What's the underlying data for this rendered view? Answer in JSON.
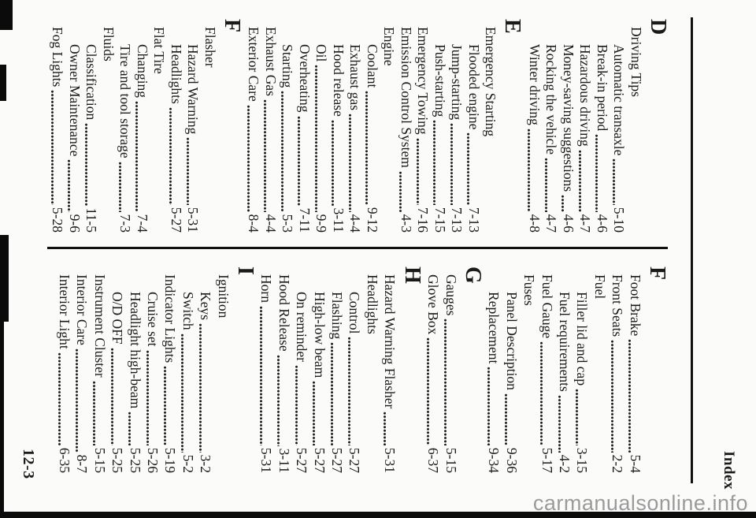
{
  "header": {
    "title": "Index"
  },
  "page_number": "12-3",
  "watermark": "carmanualsonline.info",
  "colors": {
    "ink": "#1a1a1a",
    "rule": "#101010",
    "watermark_gray": "#9b9b9b",
    "paper": "#fbfbf9"
  },
  "index": {
    "left_column": [
      {
        "type": "letter",
        "text": "D"
      },
      {
        "type": "header",
        "level": 1,
        "text": "Driving Tips"
      },
      {
        "type": "entry",
        "level": 2,
        "text": "Automatic transaxle",
        "num": "5-10"
      },
      {
        "type": "entry",
        "level": 2,
        "text": "Break-in period",
        "num": "4-6"
      },
      {
        "type": "entry",
        "level": 2,
        "text": "Hazardous driving",
        "num": "4-7"
      },
      {
        "type": "entry",
        "level": 2,
        "text": "Money-saving suggestions",
        "num": "4-6"
      },
      {
        "type": "entry",
        "level": 2,
        "text": "Rocking the vehicle",
        "num": "4-7"
      },
      {
        "type": "entry",
        "level": 2,
        "text": "Winter driving",
        "num": "4-8"
      },
      {
        "type": "letter",
        "text": "E"
      },
      {
        "type": "header",
        "level": 1,
        "text": "Emergency Starting"
      },
      {
        "type": "entry",
        "level": 2,
        "text": "Flooded engine",
        "num": "7-13"
      },
      {
        "type": "entry",
        "level": 2,
        "text": "Jump-starting",
        "num": "7-13"
      },
      {
        "type": "entry",
        "level": 2,
        "text": "Push-starting",
        "num": "7-15"
      },
      {
        "type": "entry",
        "level": 1,
        "text": "Emergency Towing",
        "num": "7-16"
      },
      {
        "type": "entry",
        "level": 1,
        "text": "Emission Control System",
        "num": "4-3"
      },
      {
        "type": "header",
        "level": 1,
        "text": "Engine"
      },
      {
        "type": "entry",
        "level": 2,
        "text": "Coolant",
        "num": "9-12"
      },
      {
        "type": "entry",
        "level": 2,
        "text": "Exhaust gas",
        "num": "4-4"
      },
      {
        "type": "entry",
        "level": 2,
        "text": "Hood release",
        "num": "3-11"
      },
      {
        "type": "entry",
        "level": 2,
        "text": "Oil",
        "num": "9-9"
      },
      {
        "type": "entry",
        "level": 2,
        "text": "Overheating",
        "num": "7-11"
      },
      {
        "type": "entry",
        "level": 2,
        "text": "Starting",
        "num": "5-3"
      },
      {
        "type": "entry",
        "level": 1,
        "text": "Exhaust Gas",
        "num": "4-4"
      },
      {
        "type": "entry",
        "level": 1,
        "text": "Exterior Care",
        "num": "8-4"
      },
      {
        "type": "letter",
        "text": "F"
      },
      {
        "type": "header",
        "level": 1,
        "text": "Flasher"
      },
      {
        "type": "entry",
        "level": 2,
        "text": "Hazard Warning",
        "num": "5-31"
      },
      {
        "type": "entry",
        "level": 2,
        "text": "Headlights",
        "num": "5-27"
      },
      {
        "type": "header",
        "level": 1,
        "text": "Flat Tire"
      },
      {
        "type": "entry",
        "level": 2,
        "text": "Changing",
        "num": "7-4"
      },
      {
        "type": "entry",
        "level": 2,
        "text": "Tire and tool storage",
        "num": "7-3"
      },
      {
        "type": "header",
        "level": 1,
        "text": "Fluids"
      },
      {
        "type": "entry",
        "level": 2,
        "text": "Classification",
        "num": "11-5"
      },
      {
        "type": "entry",
        "level": 2,
        "text": "Owner Maintenance",
        "num": "9-6"
      },
      {
        "type": "entry",
        "level": 1,
        "text": "Fog Lights",
        "num": "5-28"
      }
    ],
    "right_column": [
      {
        "type": "letter",
        "text": "F"
      },
      {
        "type": "entry",
        "level": 1,
        "text": "Foot Brake",
        "num": "5-4"
      },
      {
        "type": "entry",
        "level": 1,
        "text": "Front Seats",
        "num": "2-2"
      },
      {
        "type": "header",
        "level": 1,
        "text": "Fuel"
      },
      {
        "type": "entry",
        "level": 2,
        "text": "Filler lid and cap",
        "num": "3-15"
      },
      {
        "type": "entry",
        "level": 2,
        "text": "Fuel requirements",
        "num": "4-2"
      },
      {
        "type": "entry",
        "level": 1,
        "text": "Fuel Gauge",
        "num": "5-17"
      },
      {
        "type": "header",
        "level": 1,
        "text": "Fuses"
      },
      {
        "type": "entry",
        "level": 2,
        "text": "Panel Description",
        "num": "9-36"
      },
      {
        "type": "entry",
        "level": 2,
        "text": "Replacement",
        "num": "9-34"
      },
      {
        "type": "letter",
        "text": "G"
      },
      {
        "type": "entry",
        "level": 1,
        "text": "Gauges",
        "num": "5-15"
      },
      {
        "type": "entry",
        "level": 1,
        "text": "Glove Box",
        "num": "6-37"
      },
      {
        "type": "letter",
        "text": "H"
      },
      {
        "type": "entry",
        "level": 1,
        "text": "Hazard Warning Flasher",
        "num": "5-31"
      },
      {
        "type": "header",
        "level": 1,
        "text": "Headlights"
      },
      {
        "type": "entry",
        "level": 2,
        "text": "Control",
        "num": "5-27"
      },
      {
        "type": "entry",
        "level": 2,
        "text": "Flashing",
        "num": "5-27"
      },
      {
        "type": "entry",
        "level": 2,
        "text": "High-low beam",
        "num": "5-27"
      },
      {
        "type": "entry",
        "level": 2,
        "text": "On reminder",
        "num": "5-27"
      },
      {
        "type": "entry",
        "level": 1,
        "text": "Hood Release",
        "num": "3-11"
      },
      {
        "type": "entry",
        "level": 1,
        "text": "Horn",
        "num": "5-31"
      },
      {
        "type": "letter",
        "text": "I"
      },
      {
        "type": "header",
        "level": 1,
        "text": "Ignition"
      },
      {
        "type": "entry",
        "level": 2,
        "text": "Keys",
        "num": "3-2"
      },
      {
        "type": "entry",
        "level": 2,
        "text": "Switch",
        "num": "5-2"
      },
      {
        "type": "entry",
        "level": 1,
        "text": "Indicator Lights",
        "num": "5-19"
      },
      {
        "type": "entry",
        "level": 2,
        "text": "Cruise set",
        "num": "5-26"
      },
      {
        "type": "entry",
        "level": 2,
        "text": "Headlight high-beam",
        "num": "5-25"
      },
      {
        "type": "entry",
        "level": 2,
        "text": "O/D OFF",
        "num": "5-25"
      },
      {
        "type": "entry",
        "level": 1,
        "text": "Instrument Cluster",
        "num": "5-15"
      },
      {
        "type": "entry",
        "level": 1,
        "text": "Interior Care",
        "num": "8-7"
      },
      {
        "type": "entry",
        "level": 1,
        "text": "Interior Light",
        "num": "6-35"
      }
    ]
  }
}
